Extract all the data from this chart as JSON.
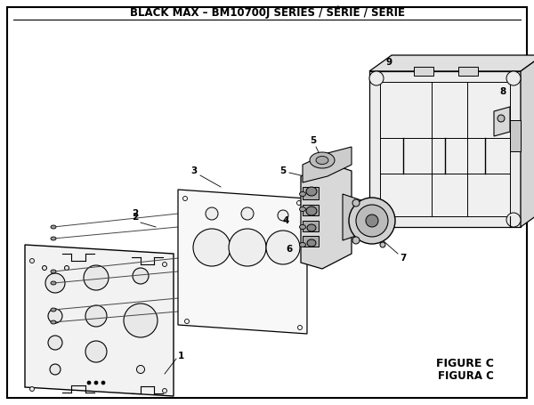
{
  "title": "BLACK MAX – BM10700J SERIES / SÉRIE / SERIE",
  "figure_label": "FIGURE C",
  "figura_label": "FIGURA C",
  "bg_color": "#ffffff",
  "border_color": "#000000",
  "title_fontsize": 8.5,
  "label_fontsize": 7.5,
  "fig_label_fontsize": 9
}
